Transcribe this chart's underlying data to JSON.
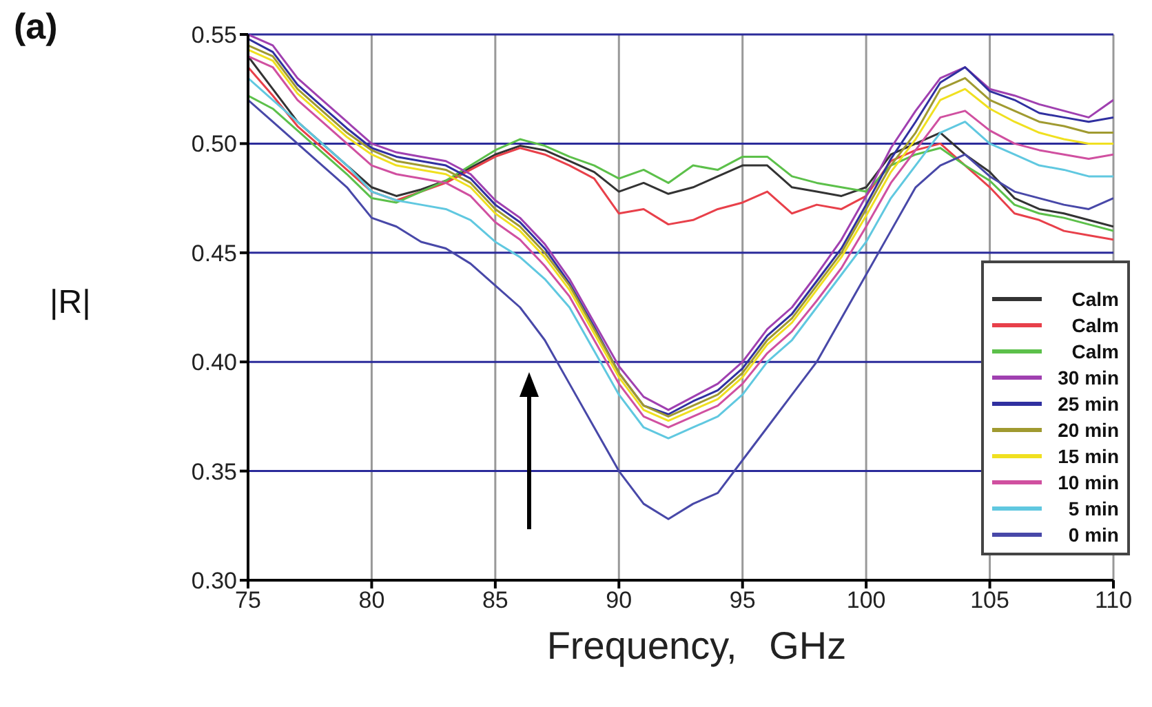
{
  "chart_data": {
    "type": "line",
    "title": "(a)",
    "xlabel": "Frequency,   GHz",
    "ylabel": "|R|",
    "x": [
      75,
      76,
      77,
      78,
      79,
      80,
      81,
      82,
      83,
      84,
      85,
      86,
      87,
      88,
      89,
      90,
      91,
      92,
      93,
      94,
      95,
      96,
      97,
      98,
      99,
      100,
      101,
      102,
      103,
      104,
      105,
      106,
      107,
      108,
      109,
      110
    ],
    "xlim": [
      75,
      110
    ],
    "xticks": [
      75,
      80,
      85,
      90,
      95,
      100,
      105,
      110
    ],
    "ylim": [
      0.3,
      0.55
    ],
    "yticks": [
      {
        "value": 0.3,
        "label": "0.30"
      },
      {
        "value": 0.35,
        "label": "0.35"
      },
      {
        "value": 0.4,
        "label": "0.40"
      },
      {
        "value": 0.45,
        "label": "0.45"
      },
      {
        "value": 0.5,
        "label": "0.50"
      },
      {
        "value": 0.55,
        "label": "0.55"
      }
    ],
    "grid": true,
    "legend": "bottom right",
    "marker": "none",
    "line_style": "solid",
    "series": [
      {
        "name": "Calm",
        "color": "#333333",
        "values": [
          0.54,
          0.525,
          0.51,
          0.5,
          0.49,
          0.48,
          0.476,
          0.479,
          0.483,
          0.489,
          0.495,
          0.499,
          0.497,
          0.492,
          0.487,
          0.478,
          0.482,
          0.477,
          0.48,
          0.485,
          0.49,
          0.49,
          0.48,
          0.478,
          0.476,
          0.48,
          0.495,
          0.5,
          0.505,
          0.495,
          0.487,
          0.475,
          0.47,
          0.468,
          0.465,
          0.462
        ]
      },
      {
        "name": "Calm",
        "color": "#e8404a",
        "values": [
          0.535,
          0.522,
          0.508,
          0.498,
          0.488,
          0.478,
          0.474,
          0.478,
          0.482,
          0.488,
          0.494,
          0.498,
          0.495,
          0.49,
          0.484,
          0.468,
          0.47,
          0.463,
          0.465,
          0.47,
          0.473,
          0.478,
          0.468,
          0.472,
          0.47,
          0.476,
          0.492,
          0.497,
          0.5,
          0.49,
          0.48,
          0.468,
          0.465,
          0.46,
          0.458,
          0.456
        ]
      },
      {
        "name": "Calm",
        "color": "#5cc04a",
        "values": [
          0.522,
          0.516,
          0.506,
          0.496,
          0.486,
          0.475,
          0.473,
          0.478,
          0.483,
          0.49,
          0.497,
          0.502,
          0.499,
          0.494,
          0.49,
          0.484,
          0.488,
          0.482,
          0.49,
          0.488,
          0.494,
          0.494,
          0.485,
          0.482,
          0.48,
          0.478,
          0.49,
          0.495,
          0.498,
          0.49,
          0.483,
          0.472,
          0.468,
          0.466,
          0.463,
          0.46
        ]
      },
      {
        "name": "30 min",
        "color": "#a040b0",
        "values": [
          0.55,
          0.545,
          0.53,
          0.52,
          0.51,
          0.5,
          0.496,
          0.494,
          0.492,
          0.486,
          0.474,
          0.466,
          0.454,
          0.438,
          0.418,
          0.398,
          0.384,
          0.378,
          0.384,
          0.39,
          0.4,
          0.415,
          0.425,
          0.44,
          0.456,
          0.476,
          0.498,
          0.515,
          0.53,
          0.535,
          0.525,
          0.522,
          0.518,
          0.515,
          0.512,
          0.52
        ]
      },
      {
        "name": "25 min",
        "color": "#3030a0",
        "values": [
          0.548,
          0.542,
          0.527,
          0.517,
          0.507,
          0.498,
          0.494,
          0.492,
          0.49,
          0.484,
          0.472,
          0.464,
          0.452,
          0.436,
          0.416,
          0.395,
          0.38,
          0.376,
          0.382,
          0.387,
          0.397,
          0.412,
          0.422,
          0.437,
          0.452,
          0.472,
          0.493,
          0.51,
          0.528,
          0.535,
          0.524,
          0.52,
          0.514,
          0.512,
          0.51,
          0.512
        ]
      },
      {
        "name": "20 min",
        "color": "#a09a30",
        "values": [
          0.545,
          0.54,
          0.525,
          0.515,
          0.505,
          0.497,
          0.492,
          0.49,
          0.488,
          0.482,
          0.47,
          0.462,
          0.45,
          0.435,
          0.415,
          0.395,
          0.38,
          0.375,
          0.38,
          0.385,
          0.395,
          0.41,
          0.42,
          0.435,
          0.45,
          0.47,
          0.49,
          0.505,
          0.525,
          0.53,
          0.52,
          0.515,
          0.51,
          0.508,
          0.505,
          0.505
        ]
      },
      {
        "name": "15 min",
        "color": "#f0e020",
        "values": [
          0.543,
          0.538,
          0.523,
          0.513,
          0.503,
          0.495,
          0.49,
          0.488,
          0.486,
          0.48,
          0.468,
          0.46,
          0.448,
          0.433,
          0.413,
          0.393,
          0.378,
          0.373,
          0.378,
          0.383,
          0.393,
          0.408,
          0.418,
          0.433,
          0.448,
          0.467,
          0.487,
          0.502,
          0.52,
          0.525,
          0.516,
          0.51,
          0.505,
          0.502,
          0.5,
          0.5
        ]
      },
      {
        "name": "10 min",
        "color": "#d050a0",
        "values": [
          0.54,
          0.535,
          0.52,
          0.51,
          0.5,
          0.49,
          0.486,
          0.484,
          0.482,
          0.476,
          0.464,
          0.456,
          0.444,
          0.43,
          0.41,
          0.39,
          0.375,
          0.37,
          0.375,
          0.38,
          0.39,
          0.404,
          0.414,
          0.428,
          0.443,
          0.462,
          0.482,
          0.497,
          0.512,
          0.515,
          0.506,
          0.5,
          0.497,
          0.495,
          0.493,
          0.495
        ]
      },
      {
        "name": "5 min",
        "color": "#60c8e0",
        "values": [
          0.53,
          0.52,
          0.51,
          0.5,
          0.49,
          0.478,
          0.474,
          0.472,
          0.47,
          0.465,
          0.455,
          0.448,
          0.438,
          0.425,
          0.405,
          0.385,
          0.37,
          0.365,
          0.37,
          0.375,
          0.385,
          0.4,
          0.41,
          0.425,
          0.44,
          0.455,
          0.475,
          0.49,
          0.505,
          0.51,
          0.5,
          0.495,
          0.49,
          0.488,
          0.485,
          0.485
        ]
      },
      {
        "name": "0 min",
        "color": "#4848a8",
        "values": [
          0.52,
          0.51,
          0.5,
          0.49,
          0.48,
          0.466,
          0.462,
          0.455,
          0.452,
          0.445,
          0.435,
          0.425,
          0.41,
          0.39,
          0.37,
          0.35,
          0.335,
          0.328,
          0.335,
          0.34,
          0.355,
          0.37,
          0.385,
          0.4,
          0.42,
          0.44,
          0.46,
          0.48,
          0.49,
          0.495,
          0.485,
          0.478,
          0.475,
          0.472,
          0.47,
          0.475
        ]
      }
    ]
  }
}
